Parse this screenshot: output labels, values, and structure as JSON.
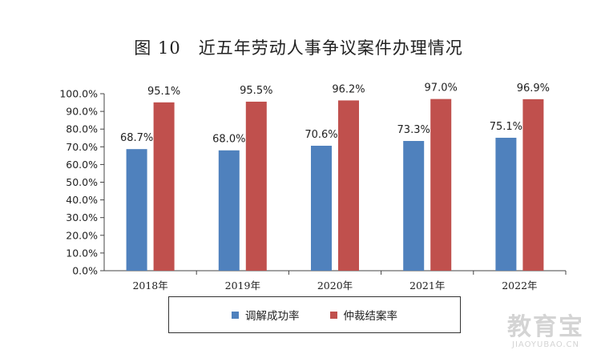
{
  "chart_data": {
    "type": "bar",
    "title": "图 10　近五年劳动人事争议案件办理情况",
    "categories": [
      "2018年",
      "2019年",
      "2020年",
      "2021年",
      "2022年"
    ],
    "series": [
      {
        "name": "调解成功率",
        "values": [
          68.7,
          68.0,
          70.6,
          73.3,
          75.1
        ],
        "labels": [
          "68.7%",
          "68.0%",
          "70.6%",
          "73.3%",
          "75.1%"
        ],
        "color": "#4f81bd"
      },
      {
        "name": "仲裁结案率",
        "values": [
          95.1,
          95.5,
          96.2,
          97.0,
          96.9
        ],
        "labels": [
          "95.1%",
          "95.5%",
          "96.2%",
          "97.0%",
          "96.9%"
        ],
        "color": "#c0504d"
      }
    ],
    "yticks": [
      "0.0%",
      "10.0%",
      "20.0%",
      "30.0%",
      "40.0%",
      "50.0%",
      "60.0%",
      "70.0%",
      "80.0%",
      "90.0%",
      "100.0%"
    ],
    "ylim": [
      0,
      100
    ],
    "grid": false,
    "legend_position": "bottom",
    "xlabel": "",
    "ylabel": ""
  },
  "watermark": {
    "main": "教育宝",
    "sub": "JIAOYUBAO.CN"
  }
}
